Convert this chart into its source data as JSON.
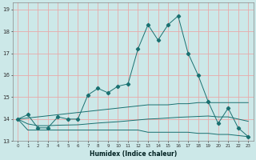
{
  "xlabel": "Humidex (Indice chaleur)",
  "x": [
    0,
    1,
    2,
    3,
    4,
    5,
    6,
    7,
    8,
    9,
    10,
    11,
    12,
    13,
    14,
    15,
    16,
    17,
    18,
    19,
    20,
    21,
    22,
    23
  ],
  "line_main": [
    14.0,
    14.2,
    13.6,
    13.6,
    14.1,
    14.0,
    14.0,
    15.1,
    15.4,
    15.2,
    15.5,
    15.6,
    17.2,
    18.3,
    17.6,
    18.3,
    18.7,
    17.0,
    16.0,
    14.8,
    13.8,
    14.5,
    13.6,
    13.2
  ],
  "line_min": [
    14.0,
    13.5,
    13.5,
    13.5,
    13.5,
    13.5,
    13.5,
    13.5,
    13.5,
    13.5,
    13.5,
    13.5,
    13.5,
    13.4,
    13.4,
    13.4,
    13.4,
    13.4,
    13.35,
    13.35,
    13.3,
    13.3,
    13.25,
    13.2
  ],
  "line_max": [
    14.0,
    14.05,
    14.1,
    14.15,
    14.2,
    14.25,
    14.3,
    14.35,
    14.4,
    14.45,
    14.5,
    14.55,
    14.6,
    14.65,
    14.65,
    14.65,
    14.7,
    14.7,
    14.75,
    14.75,
    14.75,
    14.75,
    14.75,
    14.75
  ],
  "line_avg": [
    14.0,
    13.78,
    13.7,
    13.7,
    13.72,
    13.73,
    13.74,
    13.78,
    13.82,
    13.85,
    13.88,
    13.92,
    13.96,
    14.0,
    14.02,
    14.05,
    14.08,
    14.1,
    14.12,
    14.14,
    14.1,
    14.1,
    14.0,
    13.9
  ],
  "color_main": "#1a7070",
  "bg_color": "#cce8e8",
  "grid_color": "#e8aaaa",
  "ylim": [
    13.0,
    19.3
  ],
  "xlim": [
    -0.5,
    23.5
  ],
  "yticks": [
    13,
    14,
    15,
    16,
    17,
    18,
    19
  ],
  "xticks": [
    0,
    1,
    2,
    3,
    4,
    5,
    6,
    7,
    8,
    9,
    10,
    11,
    12,
    13,
    14,
    15,
    16,
    17,
    18,
    19,
    20,
    21,
    22,
    23
  ]
}
